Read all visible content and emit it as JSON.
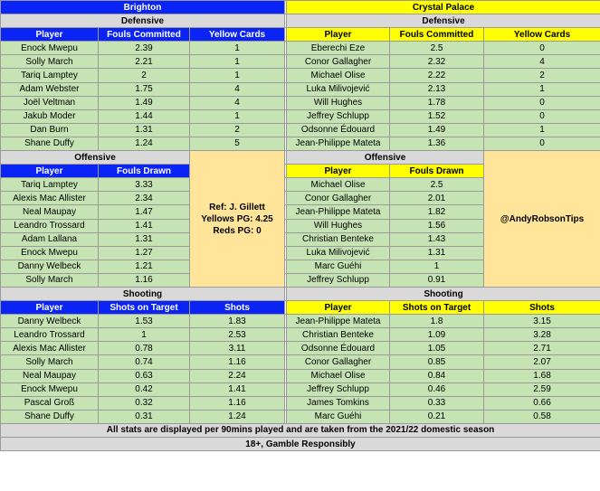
{
  "teams": {
    "left": "Brighton",
    "right": "Crystal Palace"
  },
  "sections": {
    "defensive": "Defensive",
    "offensive": "Offensive",
    "shooting": "Shooting"
  },
  "headers": {
    "player": "Player",
    "fouls_committed": "Fouls Committed",
    "yellow_cards": "Yellow Cards",
    "fouls_drawn": "Fouls Drawn",
    "shots_on_target": "Shots on Target",
    "shots": "Shots"
  },
  "brighton": {
    "defensive": [
      {
        "player": "Enock Mwepu",
        "fouls": "2.39",
        "yellows": "1"
      },
      {
        "player": "Solly March",
        "fouls": "2.21",
        "yellows": "1"
      },
      {
        "player": "Tariq Lamptey",
        "fouls": "2",
        "yellows": "1"
      },
      {
        "player": "Adam Webster",
        "fouls": "1.75",
        "yellows": "4"
      },
      {
        "player": "Joël Veltman",
        "fouls": "1.49",
        "yellows": "4"
      },
      {
        "player": "Jakub Moder",
        "fouls": "1.44",
        "yellows": "1"
      },
      {
        "player": "Dan Burn",
        "fouls": "1.31",
        "yellows": "2"
      },
      {
        "player": "Shane Duffy",
        "fouls": "1.24",
        "yellows": "5"
      }
    ],
    "offensive": [
      {
        "player": "Tariq Lamptey",
        "drawn": "3.33"
      },
      {
        "player": "Alexis Mac Allister",
        "drawn": "2.34"
      },
      {
        "player": "Neal Maupay",
        "drawn": "1.47"
      },
      {
        "player": "Leandro Trossard",
        "drawn": "1.41"
      },
      {
        "player": "Adam Lallana",
        "drawn": "1.31"
      },
      {
        "player": "Enock Mwepu",
        "drawn": "1.27"
      },
      {
        "player": "Danny Welbeck",
        "drawn": "1.21"
      },
      {
        "player": "Solly March",
        "drawn": "1.16"
      }
    ],
    "shooting": [
      {
        "player": "Danny Welbeck",
        "sot": "1.53",
        "shots": "1.83"
      },
      {
        "player": "Leandro Trossard",
        "sot": "1",
        "shots": "2.53"
      },
      {
        "player": "Alexis Mac Allister",
        "sot": "0.78",
        "shots": "3.11"
      },
      {
        "player": "Solly March",
        "sot": "0.74",
        "shots": "1.16"
      },
      {
        "player": "Neal Maupay",
        "sot": "0.63",
        "shots": "2.24"
      },
      {
        "player": "Enock Mwepu",
        "sot": "0.42",
        "shots": "1.41"
      },
      {
        "player": "Pascal Groß",
        "sot": "0.32",
        "shots": "1.16"
      },
      {
        "player": "Shane Duffy",
        "sot": "0.31",
        "shots": "1.24"
      }
    ]
  },
  "palace": {
    "defensive": [
      {
        "player": "Eberechi Eze",
        "fouls": "2.5",
        "yellows": "0"
      },
      {
        "player": "Conor Gallagher",
        "fouls": "2.32",
        "yellows": "4"
      },
      {
        "player": "Michael Olise",
        "fouls": "2.22",
        "yellows": "2"
      },
      {
        "player": "Luka Milivojević",
        "fouls": "2.13",
        "yellows": "1"
      },
      {
        "player": "Will Hughes",
        "fouls": "1.78",
        "yellows": "0"
      },
      {
        "player": "Jeffrey Schlupp",
        "fouls": "1.52",
        "yellows": "0"
      },
      {
        "player": "Odsonne Édouard",
        "fouls": "1.49",
        "yellows": "1"
      },
      {
        "player": "Jean-Philippe Mateta",
        "fouls": "1.36",
        "yellows": "0"
      }
    ],
    "offensive": [
      {
        "player": "Michael Olise",
        "drawn": "2.5"
      },
      {
        "player": "Conor Gallagher",
        "drawn": "2.01"
      },
      {
        "player": "Jean-Philippe Mateta",
        "drawn": "1.82"
      },
      {
        "player": "Will Hughes",
        "drawn": "1.56"
      },
      {
        "player": "Christian Benteke",
        "drawn": "1.43"
      },
      {
        "player": "Luka Milivojević",
        "drawn": "1.31"
      },
      {
        "player": "Marc Guéhi",
        "drawn": "1"
      },
      {
        "player": "Jeffrey Schlupp",
        "drawn": "0.91"
      }
    ],
    "shooting": [
      {
        "player": "Jean-Philippe Mateta",
        "sot": "1.8",
        "shots": "3.15"
      },
      {
        "player": "Christian Benteke",
        "sot": "1.09",
        "shots": "3.28"
      },
      {
        "player": "Odsonne Édouard",
        "sot": "1.05",
        "shots": "2.71"
      },
      {
        "player": "Conor Gallagher",
        "sot": "0.85",
        "shots": "2.07"
      },
      {
        "player": "Michael Olise",
        "sot": "0.84",
        "shots": "1.68"
      },
      {
        "player": "Jeffrey Schlupp",
        "sot": "0.46",
        "shots": "2.59"
      },
      {
        "player": "James Tomkins",
        "sot": "0.33",
        "shots": "0.66"
      },
      {
        "player": "Marc Guéhi",
        "sot": "0.21",
        "shots": "0.58"
      }
    ]
  },
  "referee": {
    "ref": "Ref: J. Gillett",
    "yellows_pg": "Yellows PG: 4.25",
    "reds_pg": "Reds PG: 0"
  },
  "credit": "@AndyRobsonTips",
  "footer": {
    "note": "All stats are displayed per 90mins played and are taken from the 2021/22 domestic season",
    "gamble": "18+, Gamble Responsibly"
  },
  "colors": {
    "brighton_blue": "#0a24f5",
    "palace_yellow": "#ffff00",
    "cell_green": "#c6e3b4",
    "section_grey": "#d9d9d9",
    "info_orange": "#ffe49a"
  }
}
